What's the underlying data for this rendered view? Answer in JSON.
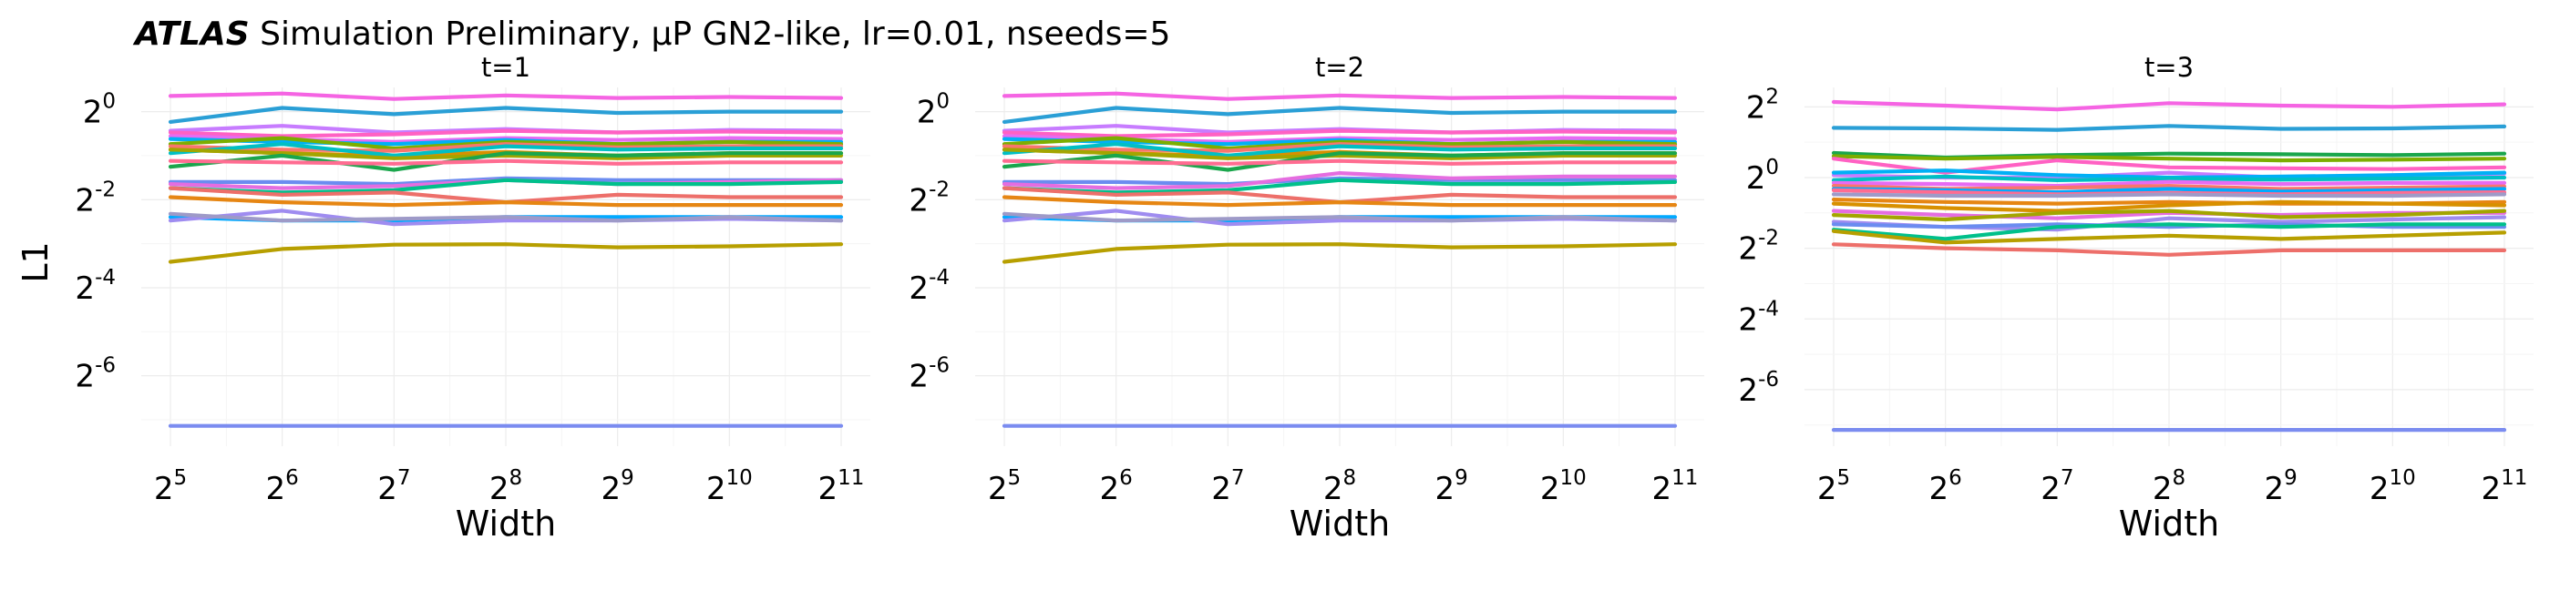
{
  "figure": {
    "title_atlas": "ATLAS",
    "title_rest": " Simulation Preliminary, μP GN2-like, lr=0.01, nseeds=5",
    "ylabel": "L1",
    "xlabel": "Width"
  },
  "chart_data": [
    {
      "type": "line",
      "title": "t=1",
      "xlabel": "Width",
      "ylabel": "L1",
      "xscale": "log2",
      "yscale": "log2",
      "x": [
        32,
        64,
        128,
        256,
        512,
        1024,
        2048
      ],
      "x_ticks": [
        {
          "base": "2",
          "exp": "5"
        },
        {
          "base": "2",
          "exp": "6"
        },
        {
          "base": "2",
          "exp": "7"
        },
        {
          "base": "2",
          "exp": "8"
        },
        {
          "base": "2",
          "exp": "9"
        },
        {
          "base": "2",
          "exp": "10"
        },
        {
          "base": "2",
          "exp": "11"
        }
      ],
      "y_ticks": [
        {
          "base": "2",
          "exp": "0"
        },
        {
          "base": "2",
          "exp": "-2"
        },
        {
          "base": "2",
          "exp": "-4"
        },
        {
          "base": "2",
          "exp": "-6"
        }
      ],
      "ylim_log2": [
        -7.6,
        0.55
      ],
      "grid": true,
      "series": [
        {
          "color": "#f564e3",
          "values": [
            1.28,
            1.33,
            1.22,
            1.29,
            1.24,
            1.26,
            1.24
          ]
        },
        {
          "color": "#2a9fd6",
          "values": [
            0.85,
            1.06,
            0.96,
            1.06,
            0.98,
            1.0,
            1.0
          ]
        },
        {
          "color": "#c77cff",
          "values": [
            0.74,
            0.8,
            0.72,
            0.76,
            0.72,
            0.75,
            0.74
          ]
        },
        {
          "color": "#ff61c3",
          "values": [
            0.72,
            0.68,
            0.7,
            0.74,
            0.72,
            0.73,
            0.72
          ]
        },
        {
          "color": "#e76bf3",
          "values": [
            0.68,
            0.65,
            0.62,
            0.66,
            0.64,
            0.66,
            0.65
          ]
        },
        {
          "color": "#00b0f6",
          "values": [
            0.65,
            0.62,
            0.6,
            0.64,
            0.6,
            0.62,
            0.62
          ]
        },
        {
          "color": "#7cae00",
          "values": [
            0.6,
            0.66,
            0.56,
            0.62,
            0.6,
            0.62,
            0.6
          ]
        },
        {
          "color": "#f8766d",
          "values": [
            0.58,
            0.55,
            0.54,
            0.6,
            0.57,
            0.58,
            0.58
          ]
        },
        {
          "color": "#d89000",
          "values": [
            0.55,
            0.52,
            0.5,
            0.53,
            0.5,
            0.52,
            0.52
          ]
        },
        {
          "color": "#00bfc4",
          "values": [
            0.52,
            0.6,
            0.5,
            0.58,
            0.55,
            0.56,
            0.56
          ]
        },
        {
          "color": "#a3a500",
          "values": [
            0.55,
            0.52,
            0.48,
            0.5,
            0.48,
            0.5,
            0.5
          ]
        },
        {
          "color": "#1aa64c",
          "values": [
            0.42,
            0.5,
            0.4,
            0.52,
            0.5,
            0.52,
            0.52
          ]
        },
        {
          "color": "#ff6c91",
          "values": [
            0.46,
            0.45,
            0.44,
            0.46,
            0.44,
            0.45,
            0.45
          ]
        },
        {
          "color": "#6b8cf0",
          "values": [
            0.33,
            0.33,
            0.32,
            0.35,
            0.34,
            0.34,
            0.34
          ]
        },
        {
          "color": "#e56de0",
          "values": [
            0.32,
            0.3,
            0.31,
            0.34,
            0.32,
            0.33,
            0.34
          ]
        },
        {
          "color": "#00c08b",
          "values": [
            0.3,
            0.28,
            0.29,
            0.34,
            0.32,
            0.32,
            0.33
          ]
        },
        {
          "color": "#ed6f6a",
          "values": [
            0.3,
            0.27,
            0.28,
            0.24,
            0.27,
            0.26,
            0.26
          ]
        },
        {
          "color": "#e68613",
          "values": [
            0.26,
            0.24,
            0.23,
            0.24,
            0.23,
            0.23,
            0.23
          ]
        },
        {
          "color": "#00a9ff",
          "values": [
            0.19,
            0.18,
            0.18,
            0.19,
            0.19,
            0.19,
            0.19
          ]
        },
        {
          "color": "#9f8cf0",
          "values": [
            0.18,
            0.21,
            0.17,
            0.18,
            0.18,
            0.185,
            0.18
          ]
        },
        {
          "color": "#9e9ac8",
          "values": [
            0.2,
            0.18,
            0.185,
            0.19,
            0.18,
            0.19,
            0.18
          ]
        },
        {
          "color": "#b79f00",
          "values": [
            0.094,
            0.115,
            0.123,
            0.124,
            0.118,
            0.12,
            0.124
          ]
        },
        {
          "color": "#7b8cf0",
          "values": [
            0.0071,
            0.0071,
            0.0071,
            0.0071,
            0.0071,
            0.0071,
            0.0071
          ]
        }
      ]
    },
    {
      "type": "line",
      "title": "t=2",
      "xlabel": "Width",
      "ylabel": "L1",
      "xscale": "log2",
      "yscale": "log2",
      "x": [
        32,
        64,
        128,
        256,
        512,
        1024,
        2048
      ],
      "x_ticks": [
        {
          "base": "2",
          "exp": "5"
        },
        {
          "base": "2",
          "exp": "6"
        },
        {
          "base": "2",
          "exp": "7"
        },
        {
          "base": "2",
          "exp": "8"
        },
        {
          "base": "2",
          "exp": "9"
        },
        {
          "base": "2",
          "exp": "10"
        },
        {
          "base": "2",
          "exp": "11"
        }
      ],
      "y_ticks": [
        {
          "base": "2",
          "exp": "0"
        },
        {
          "base": "2",
          "exp": "-2"
        },
        {
          "base": "2",
          "exp": "-4"
        },
        {
          "base": "2",
          "exp": "-6"
        }
      ],
      "ylim_log2": [
        -7.6,
        0.55
      ],
      "grid": true,
      "series": [
        {
          "color": "#f564e3",
          "values": [
            1.28,
            1.33,
            1.22,
            1.29,
            1.24,
            1.26,
            1.24
          ]
        },
        {
          "color": "#2a9fd6",
          "values": [
            0.85,
            1.06,
            0.96,
            1.06,
            0.98,
            1.0,
            1.0
          ]
        },
        {
          "color": "#c77cff",
          "values": [
            0.74,
            0.8,
            0.72,
            0.76,
            0.72,
            0.75,
            0.74
          ]
        },
        {
          "color": "#ff61c3",
          "values": [
            0.72,
            0.68,
            0.7,
            0.74,
            0.72,
            0.73,
            0.72
          ]
        },
        {
          "color": "#e76bf3",
          "values": [
            0.68,
            0.65,
            0.62,
            0.66,
            0.64,
            0.66,
            0.65
          ]
        },
        {
          "color": "#00b0f6",
          "values": [
            0.65,
            0.62,
            0.6,
            0.64,
            0.6,
            0.62,
            0.62
          ]
        },
        {
          "color": "#7cae00",
          "values": [
            0.6,
            0.66,
            0.56,
            0.62,
            0.6,
            0.62,
            0.6
          ]
        },
        {
          "color": "#f8766d",
          "values": [
            0.58,
            0.55,
            0.54,
            0.6,
            0.57,
            0.58,
            0.58
          ]
        },
        {
          "color": "#d89000",
          "values": [
            0.55,
            0.52,
            0.5,
            0.53,
            0.5,
            0.52,
            0.52
          ]
        },
        {
          "color": "#00bfc4",
          "values": [
            0.52,
            0.6,
            0.5,
            0.58,
            0.55,
            0.56,
            0.56
          ]
        },
        {
          "color": "#a3a500",
          "values": [
            0.55,
            0.52,
            0.48,
            0.5,
            0.48,
            0.5,
            0.5
          ]
        },
        {
          "color": "#1aa64c",
          "values": [
            0.42,
            0.5,
            0.4,
            0.52,
            0.5,
            0.52,
            0.52
          ]
        },
        {
          "color": "#ff6c91",
          "values": [
            0.46,
            0.45,
            0.44,
            0.46,
            0.44,
            0.45,
            0.45
          ]
        },
        {
          "color": "#6b8cf0",
          "values": [
            0.33,
            0.33,
            0.32,
            0.35,
            0.34,
            0.34,
            0.34
          ]
        },
        {
          "color": "#e56de0",
          "values": [
            0.32,
            0.3,
            0.31,
            0.38,
            0.35,
            0.36,
            0.36
          ]
        },
        {
          "color": "#00c08b",
          "values": [
            0.3,
            0.28,
            0.29,
            0.34,
            0.32,
            0.32,
            0.33
          ]
        },
        {
          "color": "#ed6f6a",
          "values": [
            0.3,
            0.27,
            0.28,
            0.24,
            0.27,
            0.26,
            0.26
          ]
        },
        {
          "color": "#e68613",
          "values": [
            0.26,
            0.24,
            0.23,
            0.24,
            0.23,
            0.23,
            0.23
          ]
        },
        {
          "color": "#00a9ff",
          "values": [
            0.19,
            0.18,
            0.18,
            0.19,
            0.19,
            0.19,
            0.19
          ]
        },
        {
          "color": "#9f8cf0",
          "values": [
            0.18,
            0.21,
            0.17,
            0.18,
            0.18,
            0.185,
            0.18
          ]
        },
        {
          "color": "#9e9ac8",
          "values": [
            0.2,
            0.18,
            0.185,
            0.19,
            0.18,
            0.19,
            0.18
          ]
        },
        {
          "color": "#b79f00",
          "values": [
            0.094,
            0.115,
            0.123,
            0.124,
            0.118,
            0.12,
            0.124
          ]
        },
        {
          "color": "#7b8cf0",
          "values": [
            0.0071,
            0.0071,
            0.0071,
            0.0071,
            0.0071,
            0.0071,
            0.0071
          ]
        }
      ]
    },
    {
      "type": "line",
      "title": "t=3",
      "xlabel": "Width",
      "ylabel": "",
      "xscale": "log2",
      "yscale": "log2",
      "x": [
        32,
        64,
        128,
        256,
        512,
        1024,
        2048
      ],
      "x_ticks": [
        {
          "base": "2",
          "exp": "5"
        },
        {
          "base": "2",
          "exp": "6"
        },
        {
          "base": "2",
          "exp": "7"
        },
        {
          "base": "2",
          "exp": "8"
        },
        {
          "base": "2",
          "exp": "9"
        },
        {
          "base": "2",
          "exp": "10"
        },
        {
          "base": "2",
          "exp": "11"
        }
      ],
      "y_ticks": [
        {
          "base": "2",
          "exp": "2"
        },
        {
          "base": "2",
          "exp": "0"
        },
        {
          "base": "2",
          "exp": "-2"
        },
        {
          "base": "2",
          "exp": "-4"
        },
        {
          "base": "2",
          "exp": "-6"
        }
      ],
      "ylim_log2": [
        -7.6,
        2.55
      ],
      "grid": true,
      "series": [
        {
          "color": "#f564e3",
          "values": [
            4.4,
            4.1,
            3.8,
            4.3,
            4.1,
            4.0,
            4.2
          ]
        },
        {
          "color": "#2a9fd6",
          "values": [
            2.65,
            2.62,
            2.55,
            2.75,
            2.6,
            2.62,
            2.72
          ]
        },
        {
          "color": "#1aa64c",
          "values": [
            1.62,
            1.48,
            1.55,
            1.6,
            1.58,
            1.55,
            1.6
          ]
        },
        {
          "color": "#7cae00",
          "values": [
            1.52,
            1.45,
            1.5,
            1.45,
            1.4,
            1.42,
            1.45
          ]
        },
        {
          "color": "#ff61c3",
          "values": [
            1.45,
            1.1,
            1.4,
            1.22,
            1.2,
            1.18,
            1.22
          ]
        },
        {
          "color": "#c77cff",
          "values": [
            1.05,
            1.0,
            1.0,
            1.1,
            1.0,
            1.05,
            1.08
          ]
        },
        {
          "color": "#00b0f6",
          "values": [
            1.1,
            1.15,
            1.05,
            1.0,
            1.02,
            1.05,
            1.1
          ]
        },
        {
          "color": "#00bfc4",
          "values": [
            0.95,
            1.02,
            0.95,
            0.98,
            0.96,
            0.98,
            1.0
          ]
        },
        {
          "color": "#e76bf3",
          "values": [
            0.9,
            0.88,
            0.85,
            0.92,
            0.88,
            0.9,
            0.9
          ]
        },
        {
          "color": "#f8766d",
          "values": [
            0.85,
            0.8,
            0.82,
            0.85,
            0.8,
            0.82,
            0.84
          ]
        },
        {
          "color": "#00a9ff",
          "values": [
            0.8,
            0.78,
            0.75,
            0.8,
            0.76,
            0.78,
            0.8
          ]
        },
        {
          "color": "#ff6c91",
          "values": [
            0.78,
            0.75,
            0.72,
            0.74,
            0.72,
            0.74,
            0.75
          ]
        },
        {
          "color": "#9e9ac8",
          "values": [
            0.72,
            0.7,
            0.7,
            0.72,
            0.7,
            0.7,
            0.72
          ]
        },
        {
          "color": "#e68613",
          "values": [
            0.65,
            0.62,
            0.6,
            0.62,
            0.6,
            0.6,
            0.62
          ]
        },
        {
          "color": "#d89000",
          "values": [
            0.6,
            0.55,
            0.52,
            0.58,
            0.62,
            0.6,
            0.58
          ]
        },
        {
          "color": "#e56de0",
          "values": [
            0.52,
            0.48,
            0.45,
            0.5,
            0.48,
            0.5,
            0.5
          ]
        },
        {
          "color": "#a3a500",
          "values": [
            0.48,
            0.44,
            0.5,
            0.52,
            0.46,
            0.48,
            0.52
          ]
        },
        {
          "color": "#9f8cf0",
          "values": [
            0.42,
            0.38,
            0.36,
            0.45,
            0.42,
            0.44,
            0.46
          ]
        },
        {
          "color": "#6b8cf0",
          "values": [
            0.4,
            0.38,
            0.4,
            0.38,
            0.4,
            0.38,
            0.38
          ]
        },
        {
          "color": "#00c08b",
          "values": [
            0.36,
            0.3,
            0.38,
            0.4,
            0.38,
            0.4,
            0.4
          ]
        },
        {
          "color": "#ed6f6a",
          "values": [
            0.27,
            0.25,
            0.24,
            0.22,
            0.24,
            0.24,
            0.24
          ]
        },
        {
          "color": "#b79f00",
          "values": [
            0.35,
            0.28,
            0.3,
            0.32,
            0.3,
            0.32,
            0.34
          ]
        },
        {
          "color": "#7b8cf0",
          "values": [
            0.0071,
            0.0071,
            0.0071,
            0.0071,
            0.0071,
            0.0071,
            0.0071
          ]
        }
      ]
    }
  ]
}
